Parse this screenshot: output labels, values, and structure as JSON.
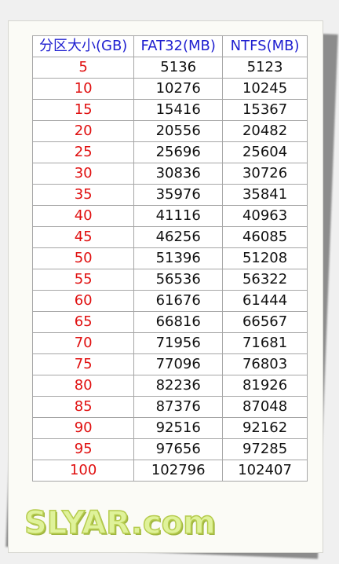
{
  "table": {
    "headers": [
      "分区大小(GB)",
      "FAT32(MB)",
      "NTFS(MB)"
    ],
    "rows": [
      [
        "5",
        "5136",
        "5123"
      ],
      [
        "10",
        "10276",
        "10245"
      ],
      [
        "15",
        "15416",
        "15367"
      ],
      [
        "20",
        "20556",
        "20482"
      ],
      [
        "25",
        "25696",
        "25604"
      ],
      [
        "30",
        "30836",
        "30726"
      ],
      [
        "35",
        "35976",
        "35841"
      ],
      [
        "40",
        "41116",
        "40963"
      ],
      [
        "45",
        "46256",
        "46085"
      ],
      [
        "50",
        "51396",
        "51208"
      ],
      [
        "55",
        "56536",
        "56322"
      ],
      [
        "60",
        "61676",
        "61444"
      ],
      [
        "65",
        "66816",
        "66567"
      ],
      [
        "70",
        "71956",
        "71681"
      ],
      [
        "75",
        "77096",
        "76803"
      ],
      [
        "80",
        "82236",
        "81926"
      ],
      [
        "85",
        "87376",
        "87048"
      ],
      [
        "90",
        "92516",
        "92162"
      ],
      [
        "95",
        "97656",
        "97285"
      ],
      [
        "100",
        "102796",
        "102407"
      ]
    ]
  },
  "watermark": "SLYAR.com",
  "colors": {
    "header_text": "#1f1fd0",
    "size_text": "#e01010",
    "value_text": "#111111",
    "watermark_fill": "#dff29a"
  }
}
